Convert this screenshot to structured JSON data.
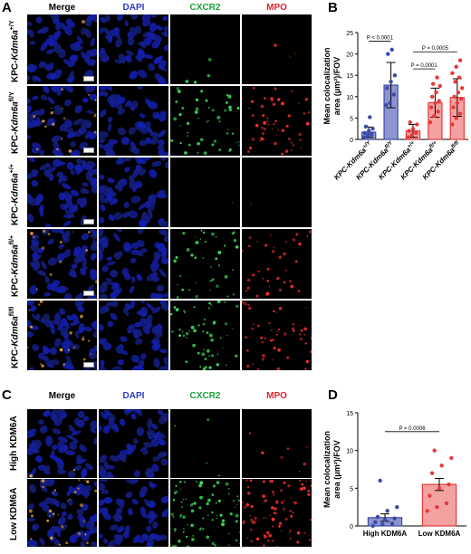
{
  "panels": {
    "A": "A",
    "B": "B",
    "C": "C",
    "D": "D"
  },
  "columns": [
    {
      "label": "Merge",
      "color": "#000000"
    },
    {
      "label": "DAPI",
      "color": "#2b3bbf"
    },
    {
      "label": "CXCR2",
      "color": "#1aa339"
    },
    {
      "label": "MPO",
      "color": "#e0232b"
    }
  ],
  "panelA_rows": [
    {
      "prefix": "KPC-",
      "gene": "Kdm6a",
      "sup": "+/Y",
      "green": 0.05,
      "red": 0.04
    },
    {
      "prefix": "KPC-",
      "gene": "Kdm6a",
      "sup": "fl/Y",
      "green": 0.55,
      "red": 0.6
    },
    {
      "prefix": "KPC-",
      "gene": "Kdm6a",
      "sup": "+/+",
      "green": 0.02,
      "red": 0.02
    },
    {
      "prefix": "KPC-",
      "gene": "Kdm6a",
      "sup": "fl/+",
      "green": 0.45,
      "red": 0.4
    },
    {
      "prefix": "KPC-",
      "gene": "Kdm6a",
      "sup": "fl/fl",
      "green": 0.6,
      "red": 0.55
    }
  ],
  "panelC_rows": [
    {
      "label": "High KDM6A",
      "green": 0.05,
      "red": 0.08
    },
    {
      "label": "Low KDM6A",
      "green": 0.95,
      "red": 0.95
    }
  ],
  "chart_data": [
    {
      "panel": "B",
      "type": "bar",
      "ylabel_line1": "Mean colocalization",
      "ylabel_line2": "area (μm²)/FOV",
      "ylim": [
        0,
        25
      ],
      "yticks": [
        0,
        5,
        10,
        15,
        20,
        25
      ],
      "categories": [
        {
          "gene": "KPC-Kdm6a",
          "sup": "+/Y"
        },
        {
          "gene": "KPC-Kdm6a",
          "sup": "fl/Y"
        },
        {
          "gene": "KPC-Kdm6a",
          "sup": "+/+"
        },
        {
          "gene": "KPC-Kdm6a",
          "sup": "fl/+"
        },
        {
          "gene": "KPC-Kdm6a",
          "sup": "fl/fl"
        }
      ],
      "values": [
        1.7,
        12.7,
        2.0,
        8.6,
        9.8
      ],
      "errors": [
        1.2,
        5.3,
        1.5,
        3.4,
        4.4
      ],
      "colors": [
        "#3a4aa8",
        "#3a4aa8",
        "#e63a3a",
        "#e63a3a",
        "#e63a3a"
      ],
      "fills": [
        "#8d95cf",
        "#8d95cf",
        "#f4a1a1",
        "#f4a1a1",
        "#f4a1a1"
      ],
      "points": [
        [
          0.5,
          1.0,
          1.2,
          1.5,
          2.0,
          2.5,
          3.0,
          5.2
        ],
        [
          8.0,
          8.5,
          10.5,
          12.0,
          13.5,
          15.0,
          20.0,
          21.0
        ],
        [
          0.5,
          1.0,
          1.5,
          2.0,
          2.5,
          3.5,
          4.0
        ],
        [
          4.0,
          5.5,
          6.5,
          7.5,
          8.5,
          9.0,
          10.0,
          11.0,
          12.5,
          13.0,
          14.5
        ],
        [
          3.5,
          5.0,
          6.0,
          7.5,
          8.5,
          9.5,
          10.0,
          11.0,
          12.0,
          13.5,
          14.5,
          15.5,
          17.0,
          18.5
        ]
      ],
      "annotations": [
        {
          "text": "P < 0.0001",
          "from": 0,
          "to": 1,
          "y": 23.0
        },
        {
          "text": "P = 0.0005",
          "from": 2,
          "to": 4,
          "y": 20.5
        },
        {
          "text": "P = 0.0001",
          "from": 2,
          "to": 3,
          "y": 16.5
        }
      ]
    },
    {
      "panel": "D",
      "type": "bar",
      "ylabel_line1": "Mean colocalization",
      "ylabel_line2": "area (μm²)/FOV",
      "ylim": [
        0,
        15
      ],
      "yticks": [
        0,
        5,
        10,
        15
      ],
      "categories": [
        "High KDM6A",
        "Low  KDM6A"
      ],
      "values": [
        1.1,
        5.5
      ],
      "errors": [
        0.5,
        0.8
      ],
      "colors": [
        "#3a4aa8",
        "#e63a3a"
      ],
      "fills": [
        "#8d95cf",
        "#f4a1a1"
      ],
      "points": [
        [
          0.0,
          0.2,
          0.3,
          0.5,
          0.8,
          1.0,
          1.2,
          2.0,
          2.5,
          6.0
        ],
        [
          2.0,
          2.5,
          3.0,
          4.0,
          5.0,
          5.5,
          7.0,
          8.0,
          9.0,
          10.0
        ]
      ],
      "annotations": [
        {
          "text": "P = 0.0006",
          "from": 0,
          "to": 1,
          "y": 12.5
        }
      ]
    }
  ]
}
